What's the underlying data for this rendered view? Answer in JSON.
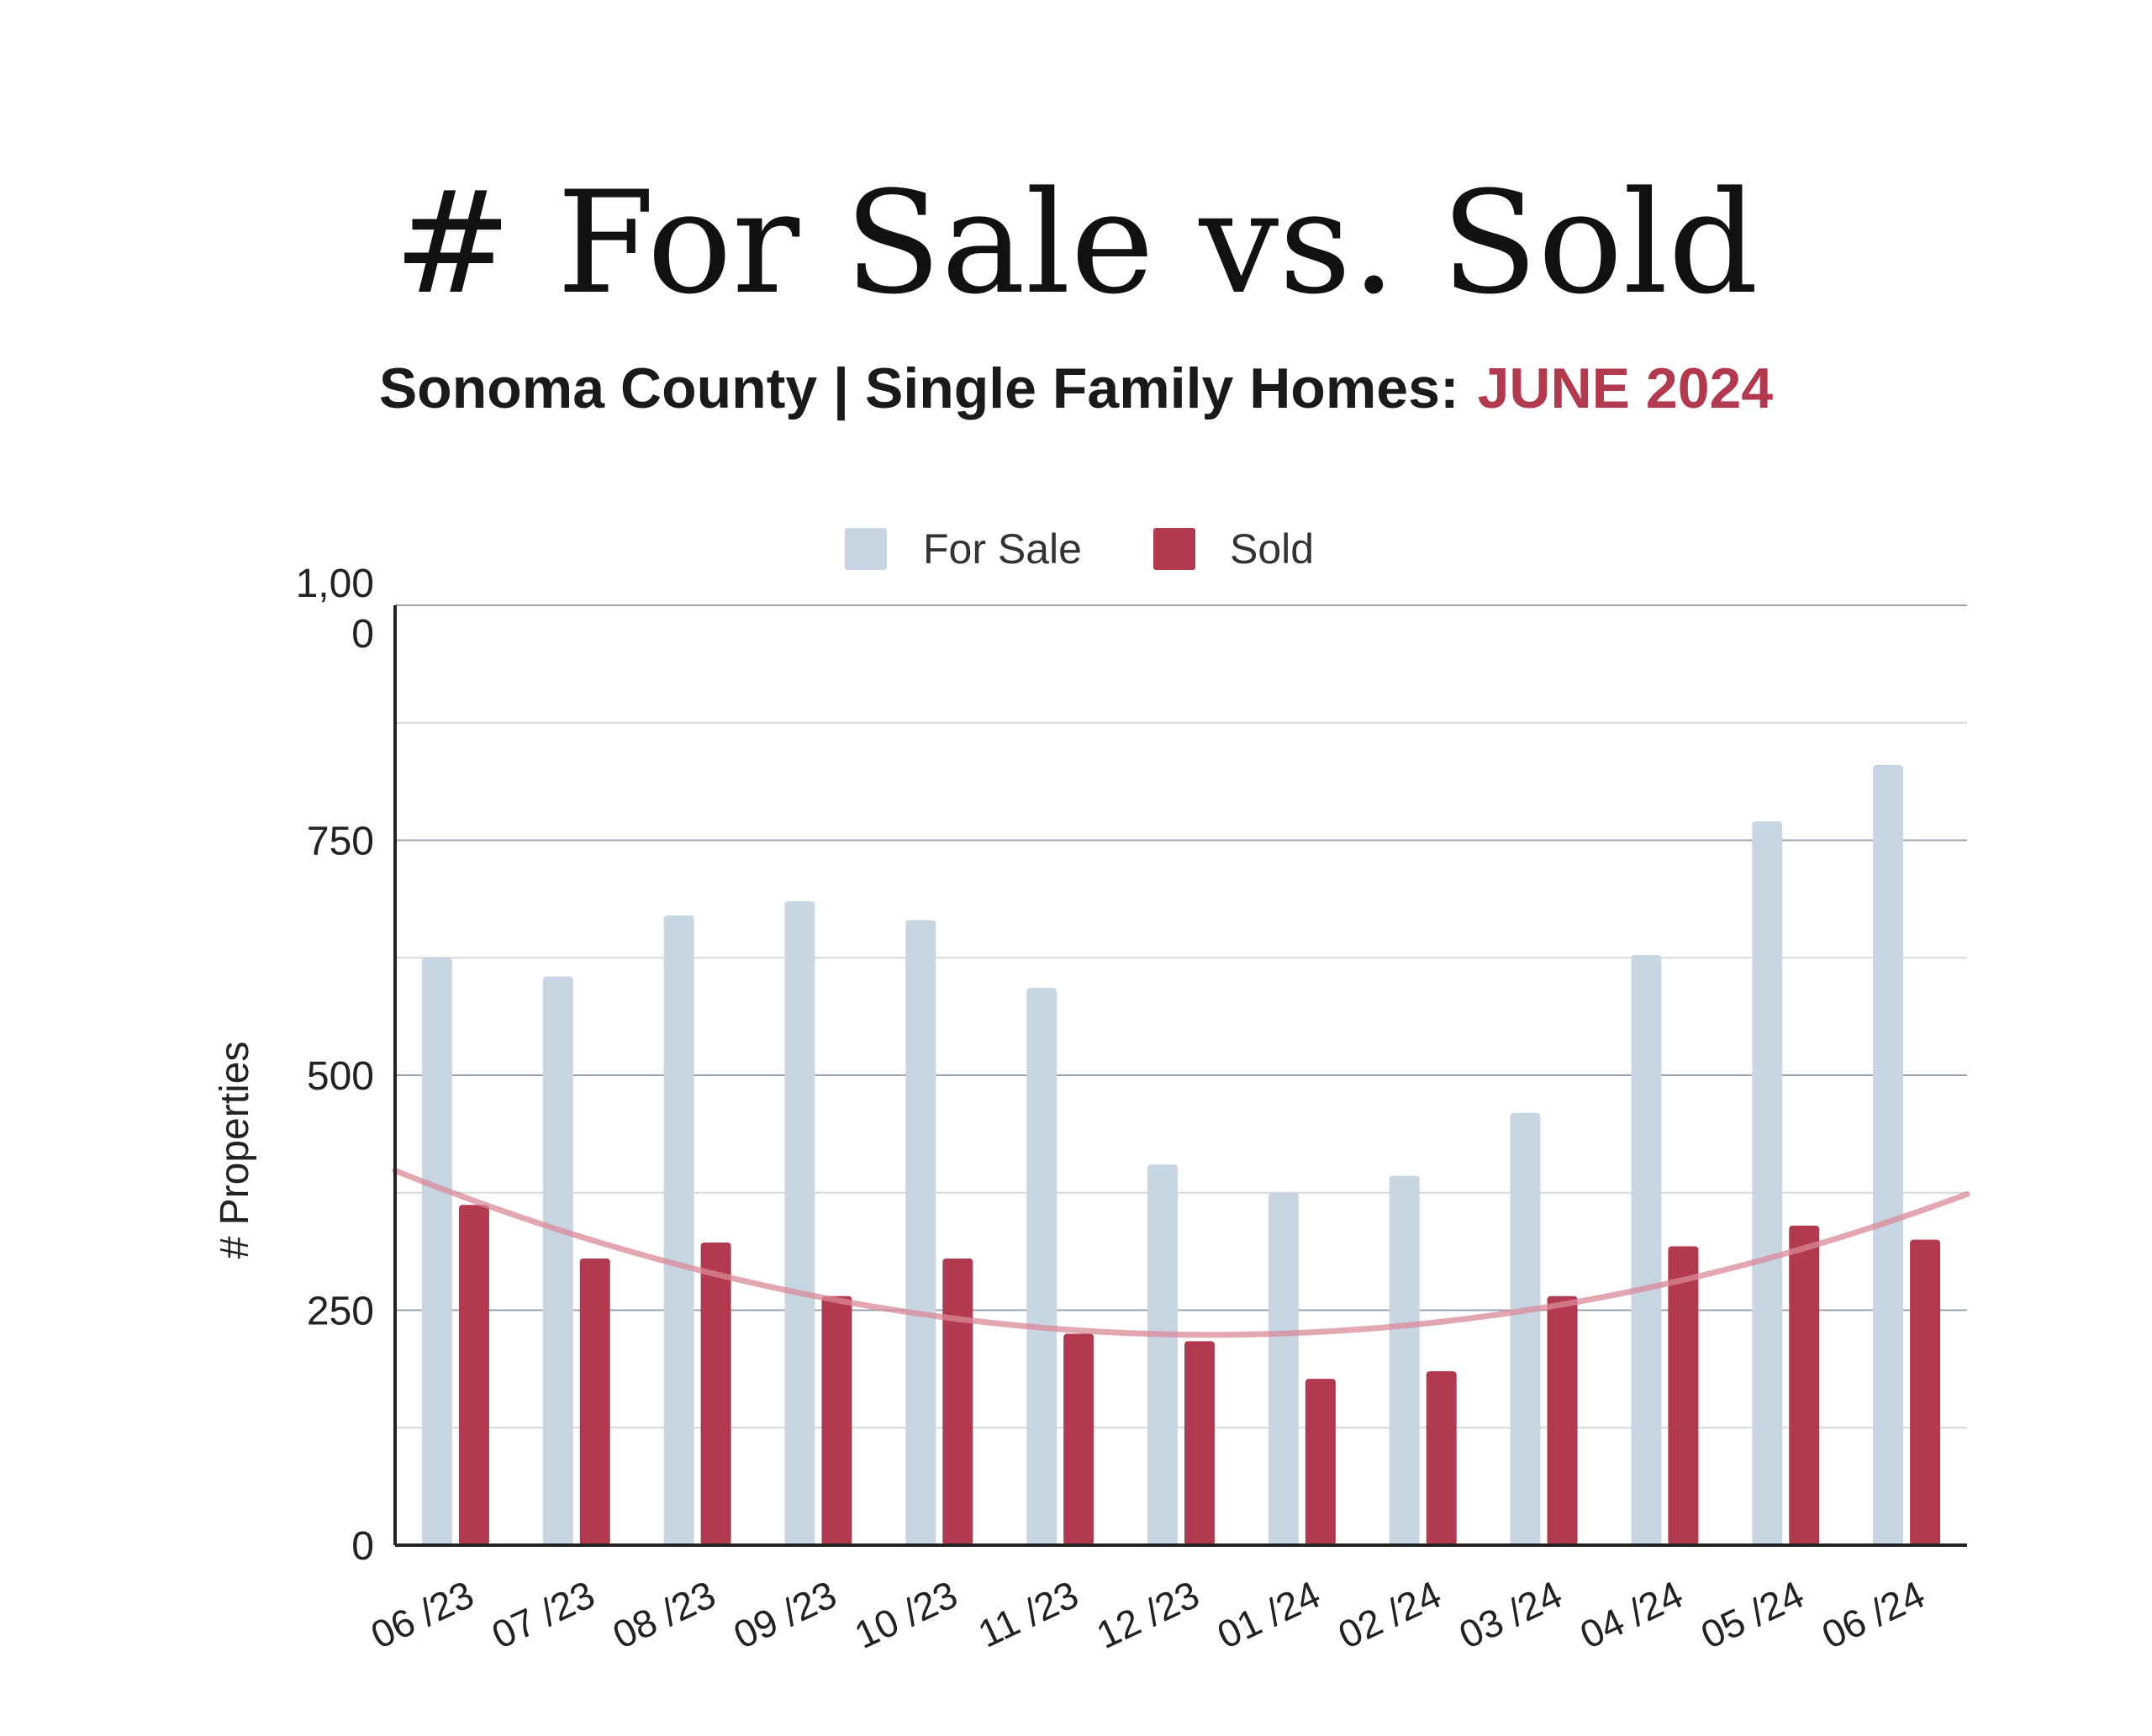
{
  "header": {
    "title": "# For Sale vs. Sold",
    "subtitle_main": "Sonoma County | Single Family Homes:",
    "subtitle_accent": "JUNE 2024"
  },
  "colors": {
    "for_sale": "#c8d6e3",
    "sold": "#b23a4e",
    "trend": "#d98a98",
    "accent": "#b23a4e"
  },
  "chart_data": {
    "type": "bar",
    "ylabel": "# Properties",
    "xlabel": "",
    "ylim": [
      0,
      1000
    ],
    "yticks": [
      {
        "value": 0,
        "label": "0"
      },
      {
        "value": 250,
        "label": "250"
      },
      {
        "value": 500,
        "label": "500"
      },
      {
        "value": 750,
        "label": "750"
      },
      {
        "value": 1000,
        "label": "1,00\n0"
      }
    ],
    "grid": true,
    "legend_position": "top-center",
    "categories": [
      "06 /23",
      "07 /23",
      "08 /23",
      "09 /23",
      "10 /23",
      "11 /23",
      "12 /23",
      "01 /24",
      "02 /24",
      "03 /24",
      "04 /24",
      "05 /24",
      "06 /24"
    ],
    "series": [
      {
        "name": "For Sale",
        "values": [
          625,
          605,
          670,
          685,
          665,
          593,
          405,
          375,
          393,
          460,
          628,
          770,
          830
        ]
      },
      {
        "name": "Sold",
        "values": [
          362,
          305,
          322,
          265,
          305,
          225,
          217,
          177,
          185,
          265,
          318,
          340,
          325
        ]
      }
    ],
    "trendline": {
      "series": "Sold",
      "type": "polynomial"
    }
  }
}
